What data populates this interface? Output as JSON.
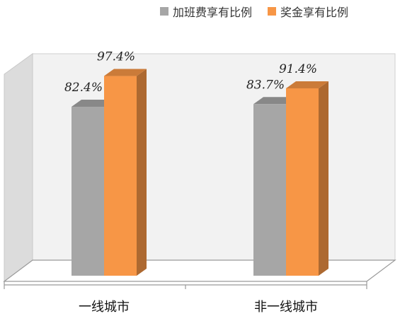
{
  "chart_data": {
    "type": "bar",
    "categories": [
      "一线城市",
      "非一线城市"
    ],
    "series": [
      {
        "name": "加班费享有比例",
        "values": [
          82.4,
          83.7
        ],
        "color": "#a6a6a6"
      },
      {
        "name": "奖金享有比例",
        "values": [
          97.4,
          91.4
        ],
        "color": "#f79646"
      }
    ],
    "value_labels": [
      [
        "82.4%",
        "83.7%"
      ],
      [
        "97.4%",
        "91.4%"
      ]
    ],
    "xlabel": "",
    "ylabel": "",
    "legend_position": "top-right",
    "grid": false,
    "style": "3d-column"
  }
}
